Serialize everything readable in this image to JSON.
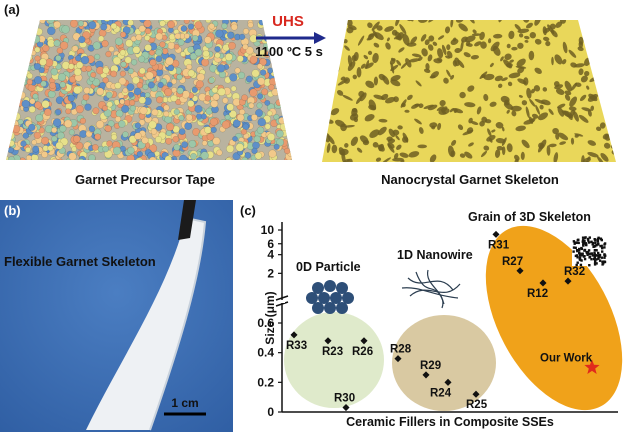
{
  "panel_a": {
    "label": "(a)",
    "arrow_top": "UHS",
    "arrow_bottom": "1100 ºC 5 s",
    "left_caption": "Garnet Precursor Tape",
    "right_caption": "Nanocrystal Garnet Skeleton",
    "colors": {
      "arrow": "#1f2a8c",
      "uhs": "#d8281f",
      "skeleton": "#e9d75a",
      "particles": [
        "#e89a6e",
        "#e7e08a",
        "#5e8fc8",
        "#9cc7a8",
        "#f2c98a"
      ]
    }
  },
  "panel_b": {
    "label": "(b)",
    "title": "Flexible Garnet Skeleton",
    "scale_bar": "1 cm",
    "colors": {
      "background": "#3f6fb4",
      "tape": "#eef1f4"
    }
  },
  "panel_c": {
    "label": "(c)",
    "xlabel": "Ceramic Fillers in Composite SSEs",
    "ylabel": "Size (μm)",
    "groups": [
      {
        "name": "0D Particle",
        "color": "#dfeacb"
      },
      {
        "name": "1D Nanowire",
        "color": "#d9c9a2"
      },
      {
        "name": "Grain of 3D Skeleton",
        "color": "#f0a21a"
      }
    ],
    "highlight": "Our Work",
    "star_color": "#e02a1c"
  },
  "chart_data": {
    "type": "scatter",
    "xlabel": "Ceramic Fillers in Composite SSEs",
    "ylabel": "Size (μm)",
    "y_axis_broken": true,
    "yticks_lower": [
      "0",
      "0.2",
      "0.4",
      "0.6"
    ],
    "yticks_upper": [
      "2",
      "4",
      "6",
      "10"
    ],
    "series": [
      {
        "name": "0D Particle",
        "points": [
          {
            "label": "R33",
            "y": 0.52
          },
          {
            "label": "R23",
            "y": 0.48
          },
          {
            "label": "R26",
            "y": 0.48
          },
          {
            "label": "R30",
            "y": 0.03
          }
        ]
      },
      {
        "name": "1D Nanowire",
        "points": [
          {
            "label": "R28",
            "y": 0.36
          },
          {
            "label": "R29",
            "y": 0.25
          },
          {
            "label": "R24",
            "y": 0.2
          },
          {
            "label": "R25",
            "y": 0.12
          }
        ]
      },
      {
        "name": "Grain of 3D Skeleton",
        "points": [
          {
            "label": "R31",
            "y": 8.5
          },
          {
            "label": "R27",
            "y": 2.2
          },
          {
            "label": "R12",
            "y": 1.4
          },
          {
            "label": "R32",
            "y": 1.5
          },
          {
            "label": "Our Work",
            "y": 0.3
          }
        ]
      }
    ]
  }
}
